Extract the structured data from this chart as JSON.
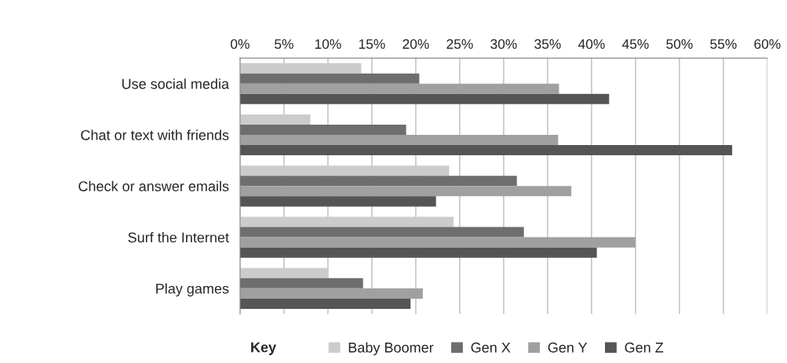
{
  "chart_data": {
    "type": "bar",
    "orientation": "horizontal",
    "categories": [
      "Use social media",
      "Chat or text with friends",
      "Check or answer emails",
      "Surf the Internet",
      "Play games"
    ],
    "series": [
      {
        "name": "Baby Boomer",
        "color": "#cccccc",
        "values": [
          13.8,
          8.0,
          23.8,
          24.3,
          10.0
        ]
      },
      {
        "name": "Gen X",
        "color": "#6e6e6e",
        "values": [
          20.4,
          18.9,
          31.5,
          32.3,
          14.0
        ]
      },
      {
        "name": "Gen Y",
        "color": "#a0a0a0",
        "values": [
          36.3,
          36.2,
          37.7,
          45.0,
          20.8
        ]
      },
      {
        "name": "Gen Z",
        "color": "#555555",
        "values": [
          42.0,
          56.0,
          22.3,
          40.6,
          19.4
        ]
      }
    ],
    "xlim": [
      0,
      60
    ],
    "xticks": [
      {
        "value": 0,
        "label": "0%"
      },
      {
        "value": 5,
        "label": "5%"
      },
      {
        "value": 10,
        "label": "10%"
      },
      {
        "value": 15,
        "label": "15%"
      },
      {
        "value": 20,
        "label": "20%"
      },
      {
        "value": 25,
        "label": "25%"
      },
      {
        "value": 30,
        "label": "30%"
      },
      {
        "value": 35,
        "label": "35%"
      },
      {
        "value": 40,
        "label": "40%"
      },
      {
        "value": 45,
        "label": "45%"
      },
      {
        "value": 50,
        "label": "50%"
      },
      {
        "value": 55,
        "label": "55%"
      },
      {
        "value": 60,
        "label": "60%"
      }
    ],
    "grid": "x",
    "legend": "bottom",
    "legend_title": "Key"
  }
}
